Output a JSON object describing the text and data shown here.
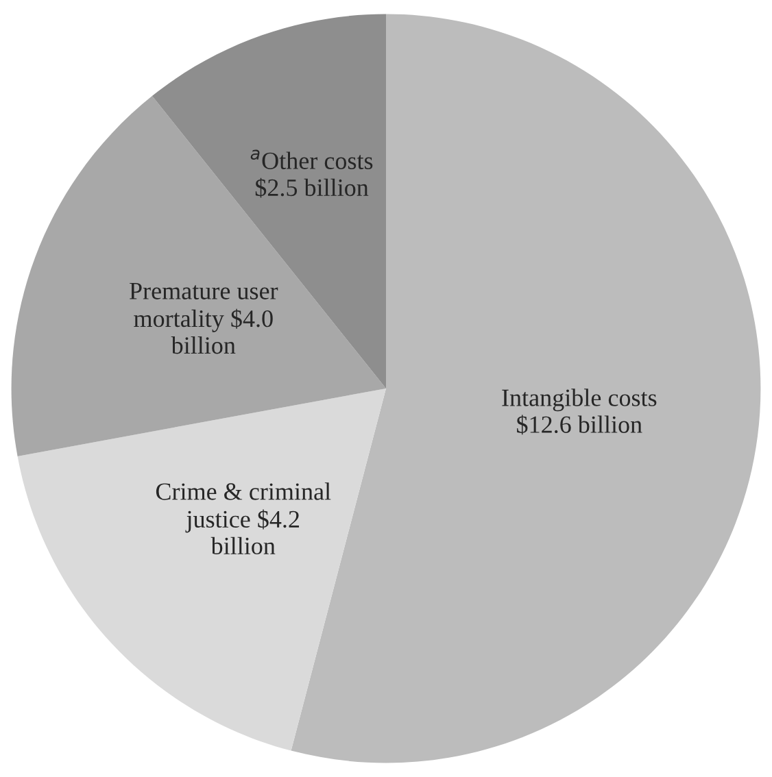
{
  "chart_data": {
    "type": "pie",
    "categories": [
      "Intangible costs",
      "Crime & criminal justice",
      "Premature user mortality",
      "$^{a}$Other costs"
    ],
    "values": [
      12.6,
      4.2,
      4.0,
      2.5
    ],
    "value_labels": [
      "$12.6 billion",
      "$4.2 billion",
      "$4.0 billion",
      "$2.5 billion"
    ],
    "colors": [
      "#bcbcbc",
      "#dadada",
      "#a8a8a8",
      "#8e8e8e"
    ]
  }
}
